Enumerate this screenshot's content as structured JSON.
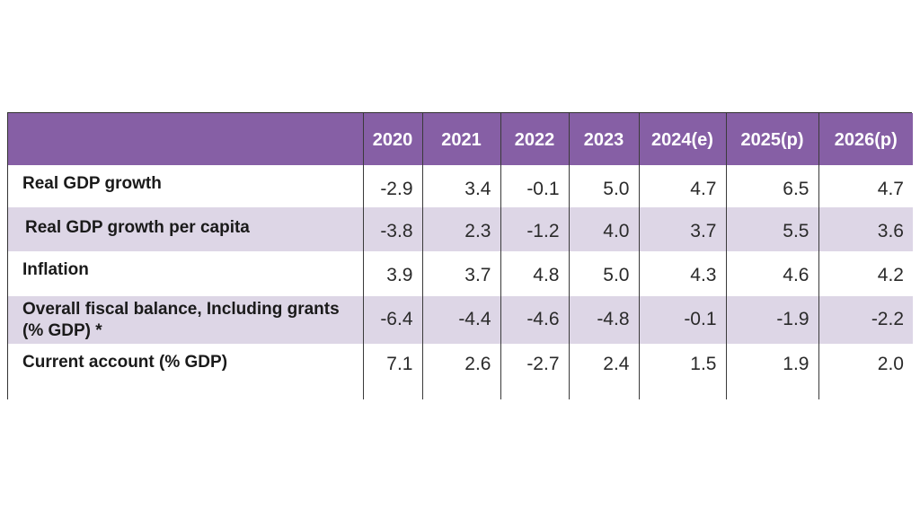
{
  "chart_data": {
    "type": "table",
    "row_header_label": "",
    "columns": [
      "2020",
      "2021",
      "2022",
      "2023",
      "2024(e)",
      "2025(p)",
      "2026(p)"
    ],
    "rows": [
      {
        "label": "Real GDP growth",
        "values": [
          "-2.9",
          "3.4",
          "-0.1",
          "5.0",
          "4.7",
          "6.5",
          "4.7"
        ]
      },
      {
        "label": "Real GDP growth per capita",
        "values": [
          "-3.8",
          "2.3",
          "-1.2",
          "4.0",
          "3.7",
          "5.5",
          "3.6"
        ]
      },
      {
        "label": "Inflation",
        "values": [
          "3.9",
          "3.7",
          "4.8",
          "5.0",
          "4.3",
          "4.6",
          "4.2"
        ]
      },
      {
        "label": "Overall fiscal balance, Including grants (% GDP) *",
        "values": [
          "-6.4",
          "-4.4",
          "-4.6",
          "-4.8",
          "-0.1",
          "-1.9",
          "-2.2"
        ]
      },
      {
        "label": "Current account (% GDP)",
        "values": [
          "7.1",
          "2.6",
          "-2.7",
          "2.4",
          "1.5",
          "1.9",
          "2.0"
        ]
      }
    ],
    "colors": {
      "header_bg": "#865fa5",
      "header_text": "#ffffff",
      "shaded_row": "#ddd6e6"
    }
  }
}
